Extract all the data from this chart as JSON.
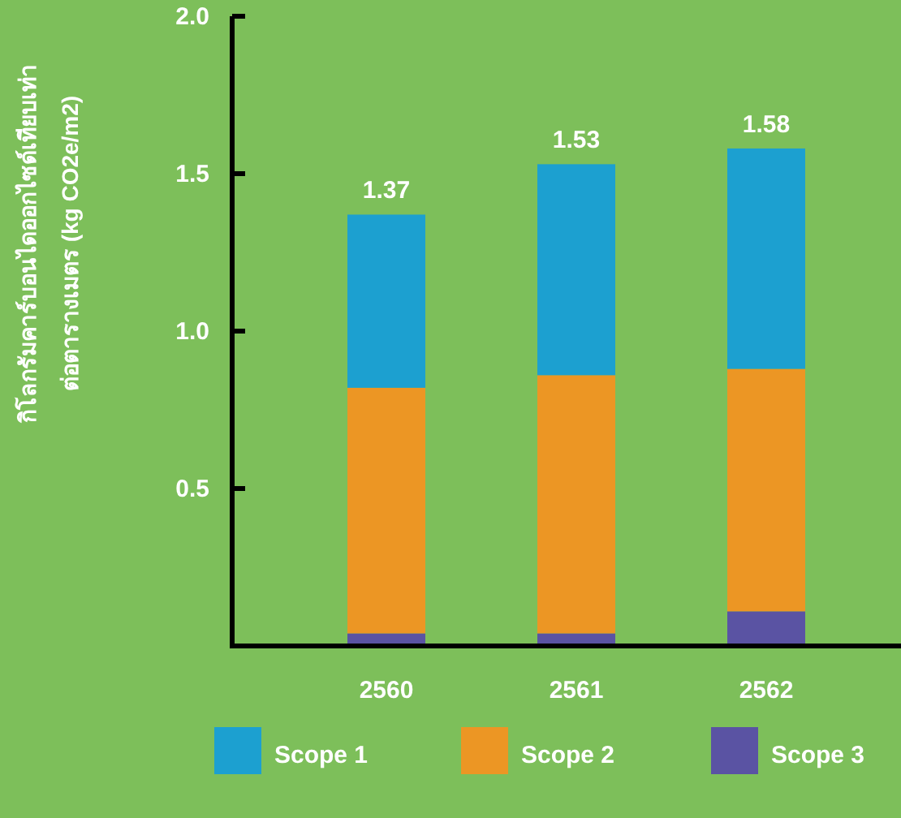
{
  "chart_data": {
    "type": "bar",
    "stacked": true,
    "ylabel": "กิโลกรัมคาร์บอนไดออกไซด์เทียบเท่า\nต่อตารางเมตร  (kg CO2e/m2)",
    "categories": [
      "2560",
      "2561",
      "2562"
    ],
    "series": [
      {
        "name": "Scope 3",
        "color": "#5a53a3",
        "values": [
          0.04,
          0.04,
          0.11
        ]
      },
      {
        "name": "Scope 2",
        "color": "#ec9624",
        "values": [
          0.78,
          0.82,
          0.77
        ]
      },
      {
        "name": "Scope 1",
        "color": "#1ca0d0",
        "values": [
          0.55,
          0.67,
          0.7
        ]
      }
    ],
    "totals": [
      "1.37",
      "1.53",
      "1.58"
    ],
    "ylim": [
      0,
      2
    ],
    "yticks": [
      {
        "value": 0,
        "label": null
      },
      {
        "value": 0.5,
        "label": "0.5"
      },
      {
        "value": 1.0,
        "label": "1.0"
      },
      {
        "value": 1.5,
        "label": "1.5"
      },
      {
        "value": 2.0,
        "label": "2.0"
      }
    ],
    "grid": false,
    "legend": "bottom"
  }
}
